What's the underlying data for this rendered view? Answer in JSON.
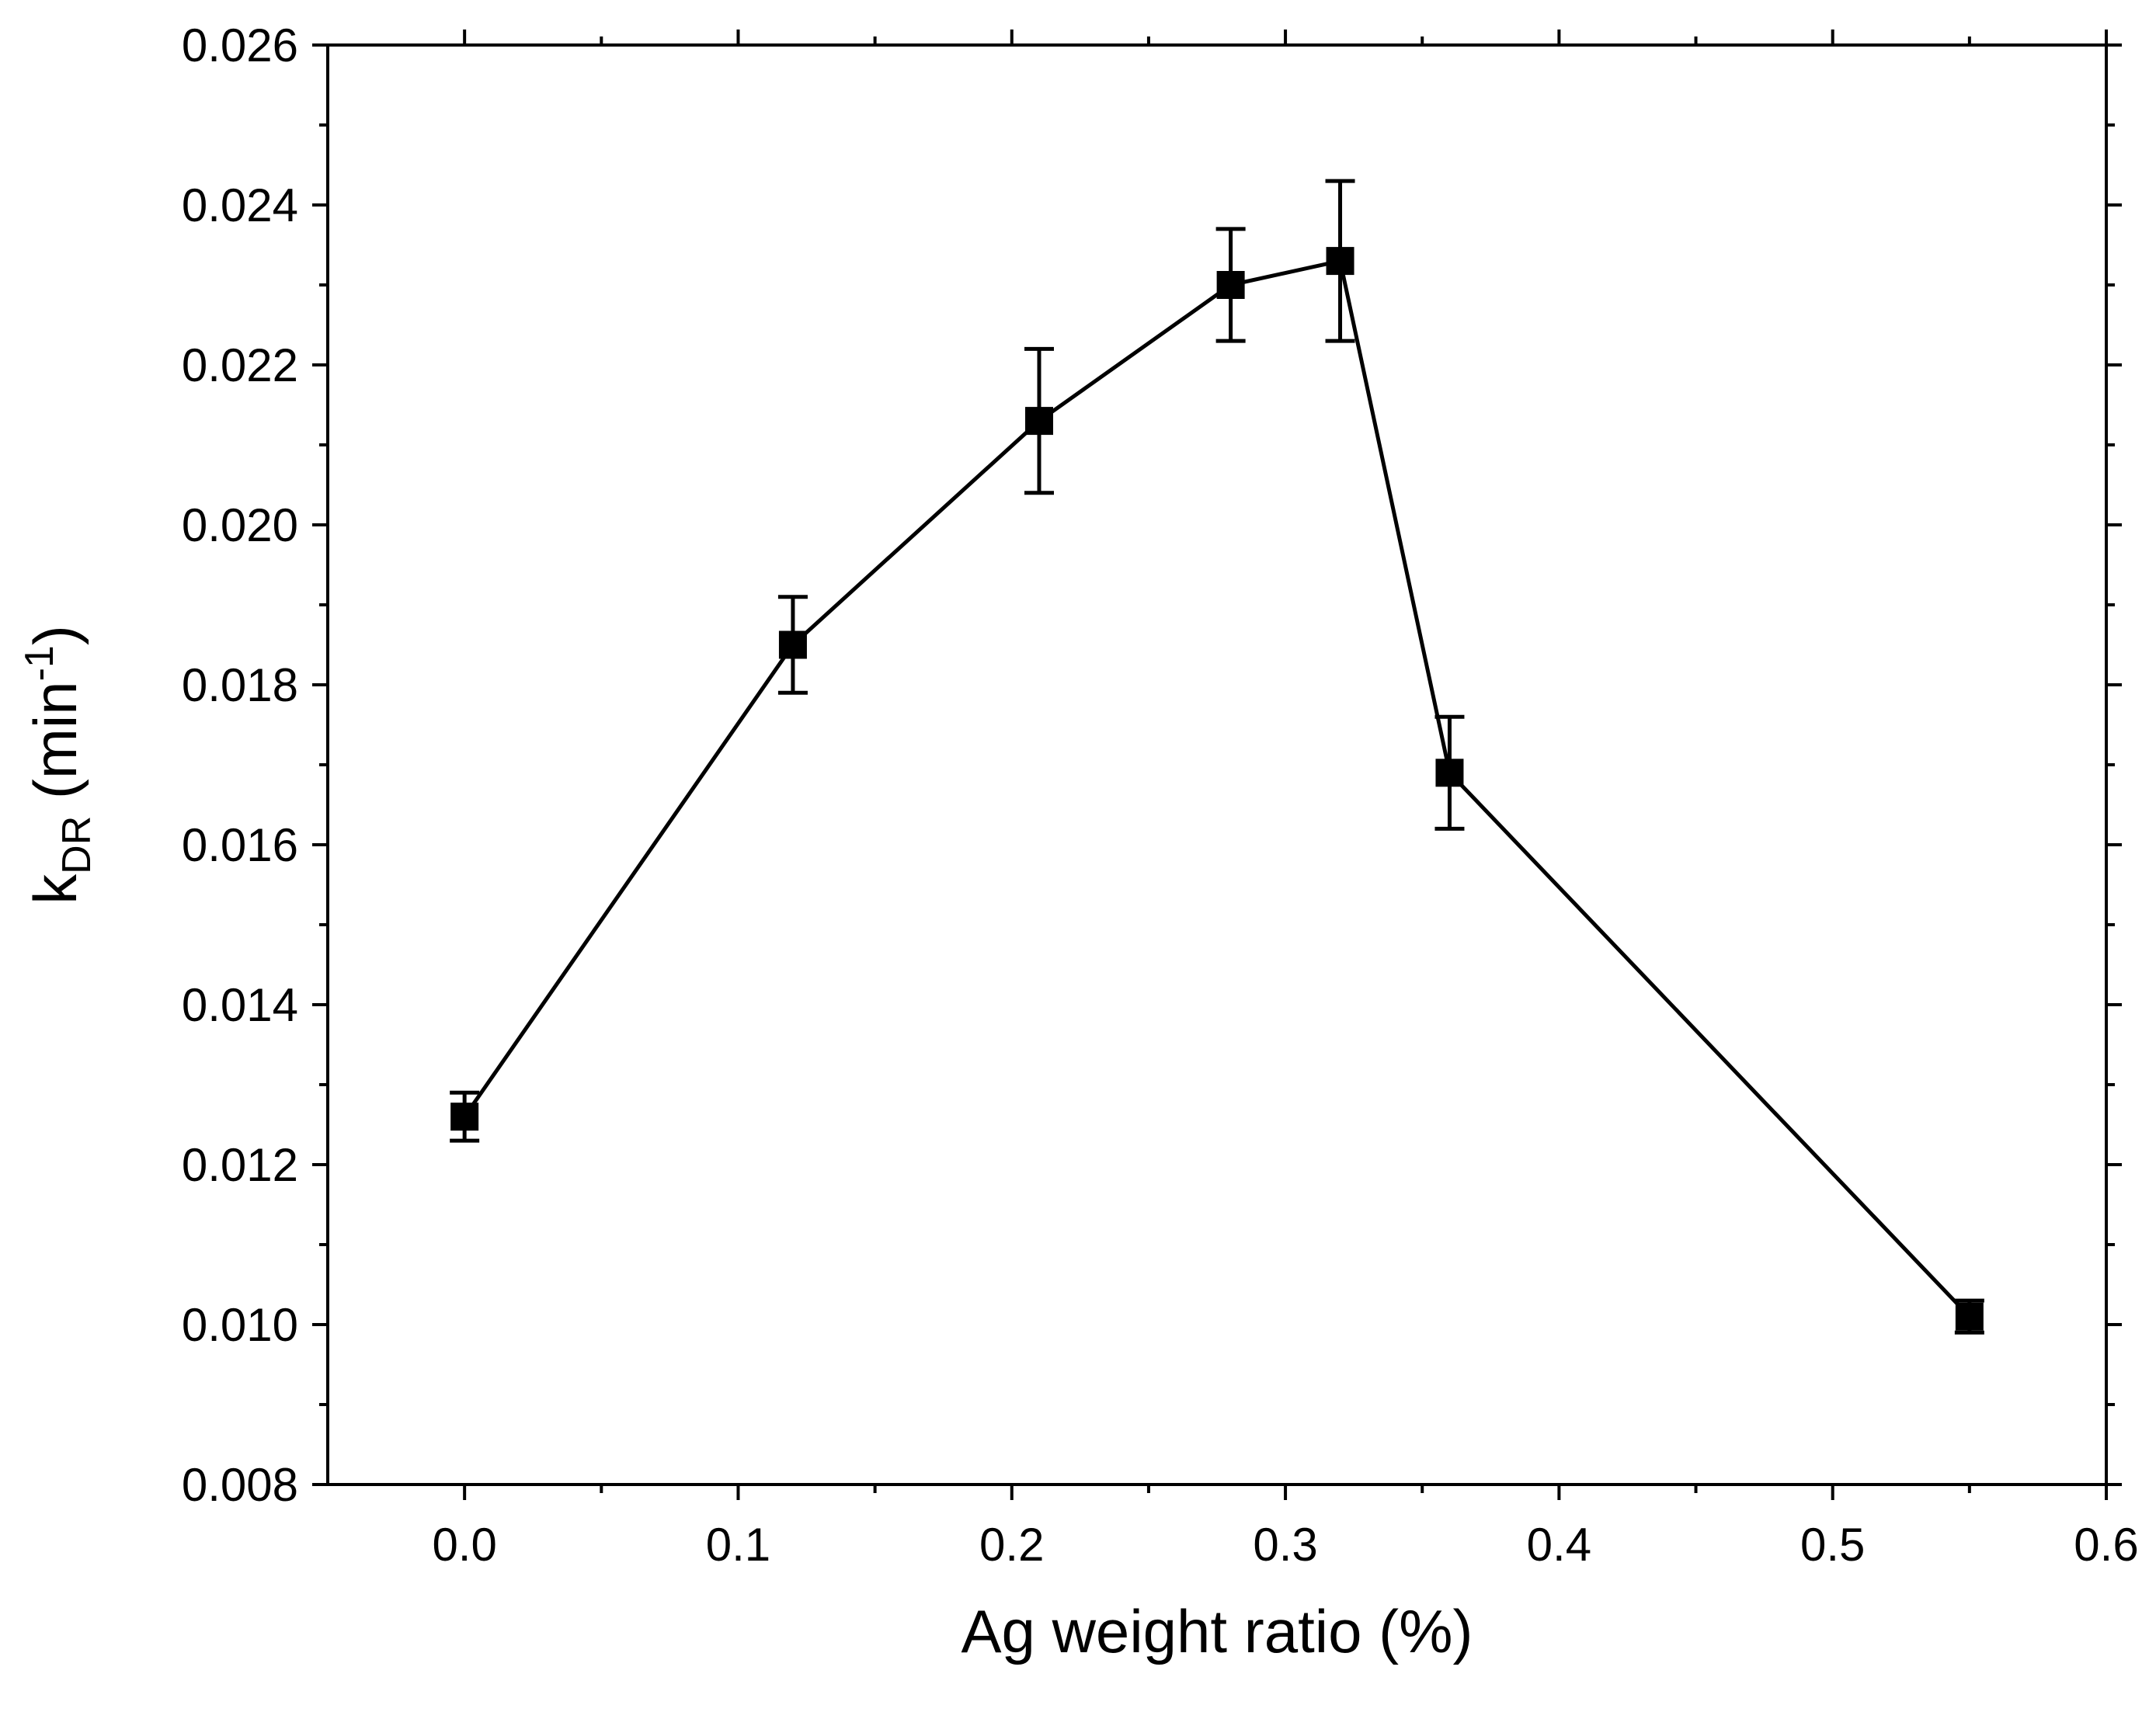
{
  "chart_data": {
    "type": "scatter",
    "title": "",
    "xlabel": "Ag weight ratio (%)",
    "ylabel": {
      "main": "k",
      "subscript": "DR",
      "unit_open": " (min",
      "unit_superscript": "-1",
      "unit_close": ")"
    },
    "xlim": [
      -0.05,
      0.6
    ],
    "ylim": [
      0.008,
      0.026
    ],
    "x_ticks": [
      0.0,
      0.1,
      0.2,
      0.3,
      0.4,
      0.5,
      0.6
    ],
    "x_tick_labels": [
      "0.0",
      "0.1",
      "0.2",
      "0.3",
      "0.4",
      "0.5",
      "0.6"
    ],
    "y_ticks": [
      0.008,
      0.01,
      0.012,
      0.014,
      0.016,
      0.018,
      0.02,
      0.022,
      0.024,
      0.026
    ],
    "y_tick_labels": [
      "0.008",
      "0.010",
      "0.012",
      "0.014",
      "0.016",
      "0.018",
      "0.020",
      "0.022",
      "0.024",
      "0.026"
    ],
    "series": [
      {
        "name": "kDR",
        "marker": "square",
        "line": true,
        "color": "#000000",
        "x": [
          0.0,
          0.12,
          0.21,
          0.28,
          0.32,
          0.36,
          0.55
        ],
        "y": [
          0.0126,
          0.0185,
          0.0213,
          0.023,
          0.0233,
          0.0169,
          0.0101
        ],
        "error": [
          0.0003,
          0.0006,
          0.0009,
          0.0007,
          0.001,
          0.0007,
          0.0002
        ]
      }
    ],
    "grid": false,
    "legend": "none"
  }
}
